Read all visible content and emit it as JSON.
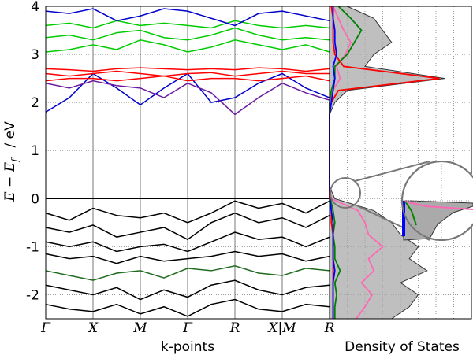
{
  "chart_data": [
    {
      "type": "line",
      "x_label": "k-points",
      "y_label": "E − E",
      "y_label_sub": "f",
      "y_label_unit": "/ eV",
      "xlim": [
        0,
        6
      ],
      "xticks": [
        {
          "value": 0,
          "label": "Γ"
        },
        {
          "value": 1,
          "label": "X"
        },
        {
          "value": 2,
          "label": "M"
        },
        {
          "value": 3,
          "label": "Γ"
        },
        {
          "value": 4,
          "label": "R"
        },
        {
          "value": 5,
          "label": "X|M"
        },
        {
          "value": 6,
          "label": "R"
        }
      ],
      "ylim": [
        -2.5,
        4
      ],
      "yticks": [
        -2,
        -1,
        0,
        1,
        2,
        3,
        4
      ],
      "reference_line": 0,
      "grid": true,
      "x": [
        0,
        0.5,
        1,
        1.5,
        2,
        2.5,
        3,
        3.5,
        4,
        4.5,
        5,
        5.5,
        6
      ],
      "series": [
        {
          "color": "#000000",
          "values": [
            -0.3,
            -0.45,
            -0.2,
            -0.35,
            -0.4,
            -0.3,
            -0.5,
            -0.3,
            -0.05,
            -0.2,
            -0.1,
            -0.3,
            -0.05
          ]
        },
        {
          "color": "#000000",
          "values": [
            -0.6,
            -0.7,
            -0.55,
            -0.8,
            -0.7,
            -0.6,
            -0.85,
            -0.5,
            -0.3,
            -0.5,
            -0.4,
            -0.6,
            -0.35
          ]
        },
        {
          "color": "#000000",
          "values": [
            -0.9,
            -1.0,
            -0.9,
            -1.1,
            -1.0,
            -0.95,
            -1.1,
            -0.9,
            -0.7,
            -0.85,
            -0.8,
            -1.0,
            -0.8
          ]
        },
        {
          "color": "#000000",
          "values": [
            -1.15,
            -1.25,
            -1.2,
            -1.35,
            -1.2,
            -1.3,
            -1.25,
            -1.2,
            -1.1,
            -1.2,
            -1.15,
            -1.3,
            -1.2
          ]
        },
        {
          "color": "#1f6b1f",
          "values": [
            -1.5,
            -1.6,
            -1.7,
            -1.55,
            -1.5,
            -1.65,
            -1.45,
            -1.5,
            -1.4,
            -1.55,
            -1.6,
            -1.45,
            -1.5
          ]
        },
        {
          "color": "#000000",
          "values": [
            -1.8,
            -1.9,
            -2.0,
            -1.85,
            -2.1,
            -1.9,
            -2.05,
            -1.8,
            -1.7,
            -1.9,
            -2.0,
            -1.85,
            -1.8
          ]
        },
        {
          "color": "#000000",
          "values": [
            -2.2,
            -2.3,
            -2.35,
            -2.2,
            -2.4,
            -2.25,
            -2.45,
            -2.2,
            -2.1,
            -2.3,
            -2.35,
            -2.2,
            -2.25
          ]
        },
        {
          "color": "#0000cc",
          "values": [
            1.8,
            2.1,
            2.6,
            2.3,
            1.95,
            2.3,
            2.6,
            2.0,
            2.1,
            2.4,
            2.6,
            2.3,
            2.1
          ]
        },
        {
          "color": "#6a1aa0",
          "values": [
            2.4,
            2.3,
            2.45,
            2.35,
            2.3,
            2.1,
            2.4,
            2.2,
            1.75,
            2.1,
            2.4,
            2.2,
            2.05
          ]
        },
        {
          "color": "#ff0000",
          "values": [
            2.45,
            2.5,
            2.5,
            2.45,
            2.5,
            2.55,
            2.45,
            2.5,
            2.5,
            2.45,
            2.5,
            2.55,
            2.45
          ]
        },
        {
          "color": "#ff0000",
          "values": [
            2.6,
            2.55,
            2.6,
            2.65,
            2.6,
            2.55,
            2.6,
            2.62,
            2.55,
            2.6,
            2.65,
            2.6,
            2.6
          ]
        },
        {
          "color": "#ff0000",
          "values": [
            2.7,
            2.68,
            2.65,
            2.7,
            2.72,
            2.7,
            2.68,
            2.7,
            2.68,
            2.72,
            2.7,
            2.65,
            2.7
          ]
        },
        {
          "color": "#00cc00",
          "values": [
            3.05,
            3.1,
            3.2,
            3.1,
            3.3,
            3.2,
            3.05,
            3.15,
            3.3,
            3.2,
            3.1,
            3.2,
            3.05
          ]
        },
        {
          "color": "#00cc00",
          "values": [
            3.35,
            3.4,
            3.3,
            3.45,
            3.5,
            3.35,
            3.3,
            3.4,
            3.55,
            3.4,
            3.3,
            3.35,
            3.3
          ]
        },
        {
          "color": "#00cc00",
          "values": [
            3.6,
            3.65,
            3.55,
            3.7,
            3.6,
            3.65,
            3.6,
            3.55,
            3.7,
            3.6,
            3.55,
            3.6,
            3.55
          ]
        },
        {
          "color": "#0000cc",
          "values": [
            3.9,
            3.85,
            3.95,
            3.7,
            3.8,
            3.95,
            3.9,
            3.75,
            3.6,
            3.85,
            3.9,
            3.8,
            3.7
          ]
        }
      ]
    },
    {
      "type": "area",
      "x_label": "Density of States",
      "xlim": [
        0,
        8
      ],
      "xticks": [
        1,
        2,
        3,
        4,
        5,
        6,
        7
      ],
      "ylim": [
        -2.5,
        4
      ],
      "yticks": [
        -2,
        -1,
        0,
        1,
        2,
        3,
        4
      ],
      "grid": true,
      "energies": [
        -2.5,
        -2.25,
        -2,
        -1.75,
        -1.5,
        -1.25,
        -1,
        -0.75,
        -0.5,
        -0.25,
        0,
        0.25,
        0.5,
        0.75,
        1,
        1.25,
        1.5,
        1.75,
        2,
        2.25,
        2.5,
        2.75,
        3,
        3.25,
        3.5,
        3.75,
        4
      ],
      "series": [
        {
          "color": "#aaaaaa",
          "values": [
            3.5,
            4.5,
            5,
            4,
            5.5,
            4.5,
            5,
            4,
            3.5,
            2.5,
            0.3,
            0,
            0,
            0,
            0,
            0,
            0,
            0,
            0.3,
            1,
            6.5,
            2,
            2.5,
            3.5,
            3,
            2.5,
            1
          ]
        },
        {
          "color": "#ff69b4",
          "values": [
            1.5,
            2,
            2.4,
            1.8,
            2.5,
            2.2,
            3,
            2.2,
            2,
            1.6,
            0.1,
            0,
            0,
            0,
            0,
            0,
            0,
            0,
            0,
            0.2,
            0.6,
            0.4,
            0.9,
            1.2,
            0.8,
            0.5,
            0.2
          ]
        },
        {
          "color": "#008000",
          "values": [
            0.3,
            0.3,
            0.4,
            0.3,
            0.6,
            0.3,
            0.3,
            0.2,
            0.3,
            0.2,
            0.05,
            0,
            0,
            0,
            0,
            0,
            0,
            0,
            0,
            0.1,
            0.3,
            0.3,
            1,
            1.4,
            1.8,
            1.2,
            0.5
          ]
        },
        {
          "color": "#ff0000",
          "values": [
            0.2,
            0.2,
            0.2,
            0.2,
            0.2,
            0.2,
            0.2,
            0.2,
            0.1,
            0.1,
            0,
            0,
            0,
            0,
            0,
            0,
            0,
            0,
            0.1,
            0.5,
            6.2,
            0.8,
            0.3,
            0.2,
            0.2,
            0.2,
            0.1
          ]
        },
        {
          "color": "#0000ff",
          "values": [
            0.2,
            0.2,
            0.2,
            0.2,
            0.3,
            0.2,
            0.2,
            0.2,
            0.2,
            0.1,
            0.02,
            0,
            0,
            0,
            0,
            0,
            0,
            0,
            0.1,
            0.2,
            0.3,
            0.2,
            0.4,
            0.3,
            0.3,
            0.2,
            0.2
          ]
        }
      ]
    }
  ]
}
